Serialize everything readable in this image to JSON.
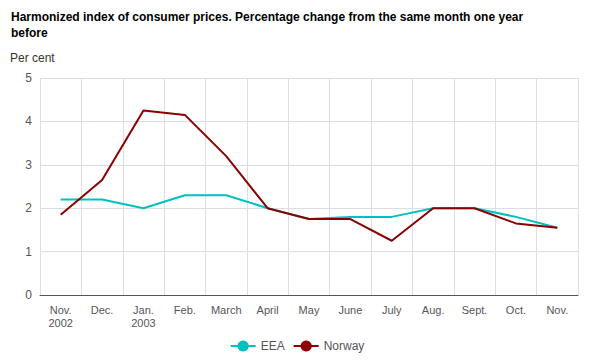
{
  "chart_data": {
    "type": "line",
    "title": "Harmonized index of consumer prices. Percentage change from the same month one year\nbefore",
    "y_label": "Per cent",
    "categories": [
      "Nov.\n2002",
      "Dec.",
      "Jan.\n2003",
      "Feb.",
      "March",
      "April",
      "May",
      "June",
      "July",
      "Aug.",
      "Sept.",
      "Oct.",
      "Nov."
    ],
    "series": [
      {
        "name": "EEA",
        "color": "#00BFBF",
        "values": [
          2.2,
          2.2,
          2.0,
          2.3,
          2.3,
          2.0,
          1.75,
          1.8,
          1.8,
          2.0,
          2.0,
          1.8,
          1.55
        ]
      },
      {
        "name": "Norway",
        "color": "#8B0000",
        "values": [
          1.85,
          2.65,
          4.25,
          4.15,
          3.2,
          2.0,
          1.75,
          1.75,
          1.25,
          2.0,
          2.0,
          1.65,
          1.55
        ]
      }
    ],
    "ylim": [
      0,
      5
    ],
    "yticks": [
      0,
      1,
      2,
      3,
      4,
      5
    ],
    "grid": true,
    "legend": "bottom"
  }
}
